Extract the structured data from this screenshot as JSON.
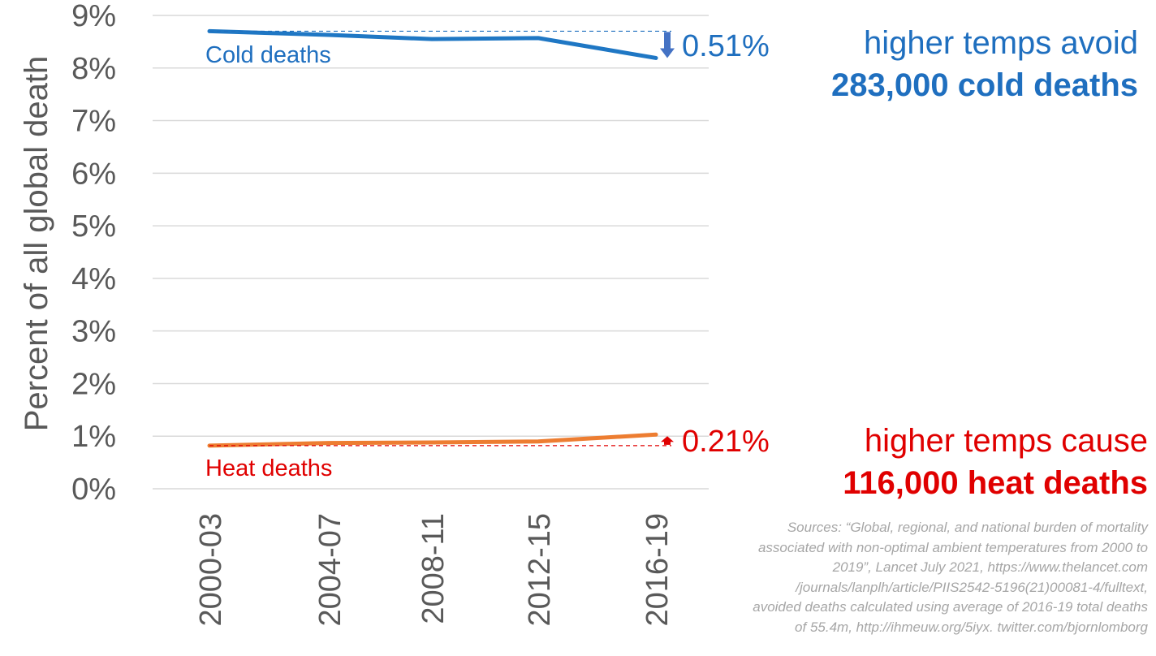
{
  "chart_data": {
    "type": "line",
    "categories": [
      "2000-03",
      "2004-07",
      "2008-11",
      "2012-15",
      "2016-19"
    ],
    "ylabel": "Percent of all global death",
    "ylim": [
      0,
      9
    ],
    "y_tick_labels": [
      "0%",
      "1%",
      "2%",
      "3%",
      "4%",
      "5%",
      "6%",
      "7%",
      "8%",
      "9%"
    ],
    "grid": true,
    "series": [
      {
        "name": "Cold deaths",
        "color": "#1f77c4",
        "values": [
          8.7,
          8.63,
          8.55,
          8.57,
          8.19
        ]
      },
      {
        "name": "Heat deaths",
        "color": "#ed7d31",
        "values": [
          0.82,
          0.87,
          0.88,
          0.9,
          1.03
        ]
      }
    ],
    "annotations": [
      {
        "series": "Cold deaths",
        "change_label": "0.51%",
        "direction": "down",
        "color": "#1f6fbf",
        "arrow_color": "#4472c4"
      },
      {
        "series": "Heat deaths",
        "change_label": "0.21%",
        "direction": "up",
        "color": "#e00000",
        "arrow_color": "#e00000"
      }
    ]
  },
  "callouts": {
    "cold": {
      "line1": "higher temps avoid",
      "line2": "283,000 cold deaths",
      "color": "#1f6fbf"
    },
    "heat": {
      "line1": "higher temps cause",
      "line2": "116,000 heat deaths",
      "color": "#e00000"
    }
  },
  "sources": [
    "Sources: “Global, regional, and national burden of mortality",
    "associated with non-optimal ambient temperatures from 2000 to",
    "2019”, Lancet July 2021, https://www.thelancet.com",
    "/journals/lanplh/article/PIIS2542-5196(21)00081-4/fulltext,",
    "avoided deaths calculated using average of 2016-19 total deaths",
    "of 55.4m, http://ihmeuw.org/5iyx. twitter.com/bjornlomborg"
  ]
}
